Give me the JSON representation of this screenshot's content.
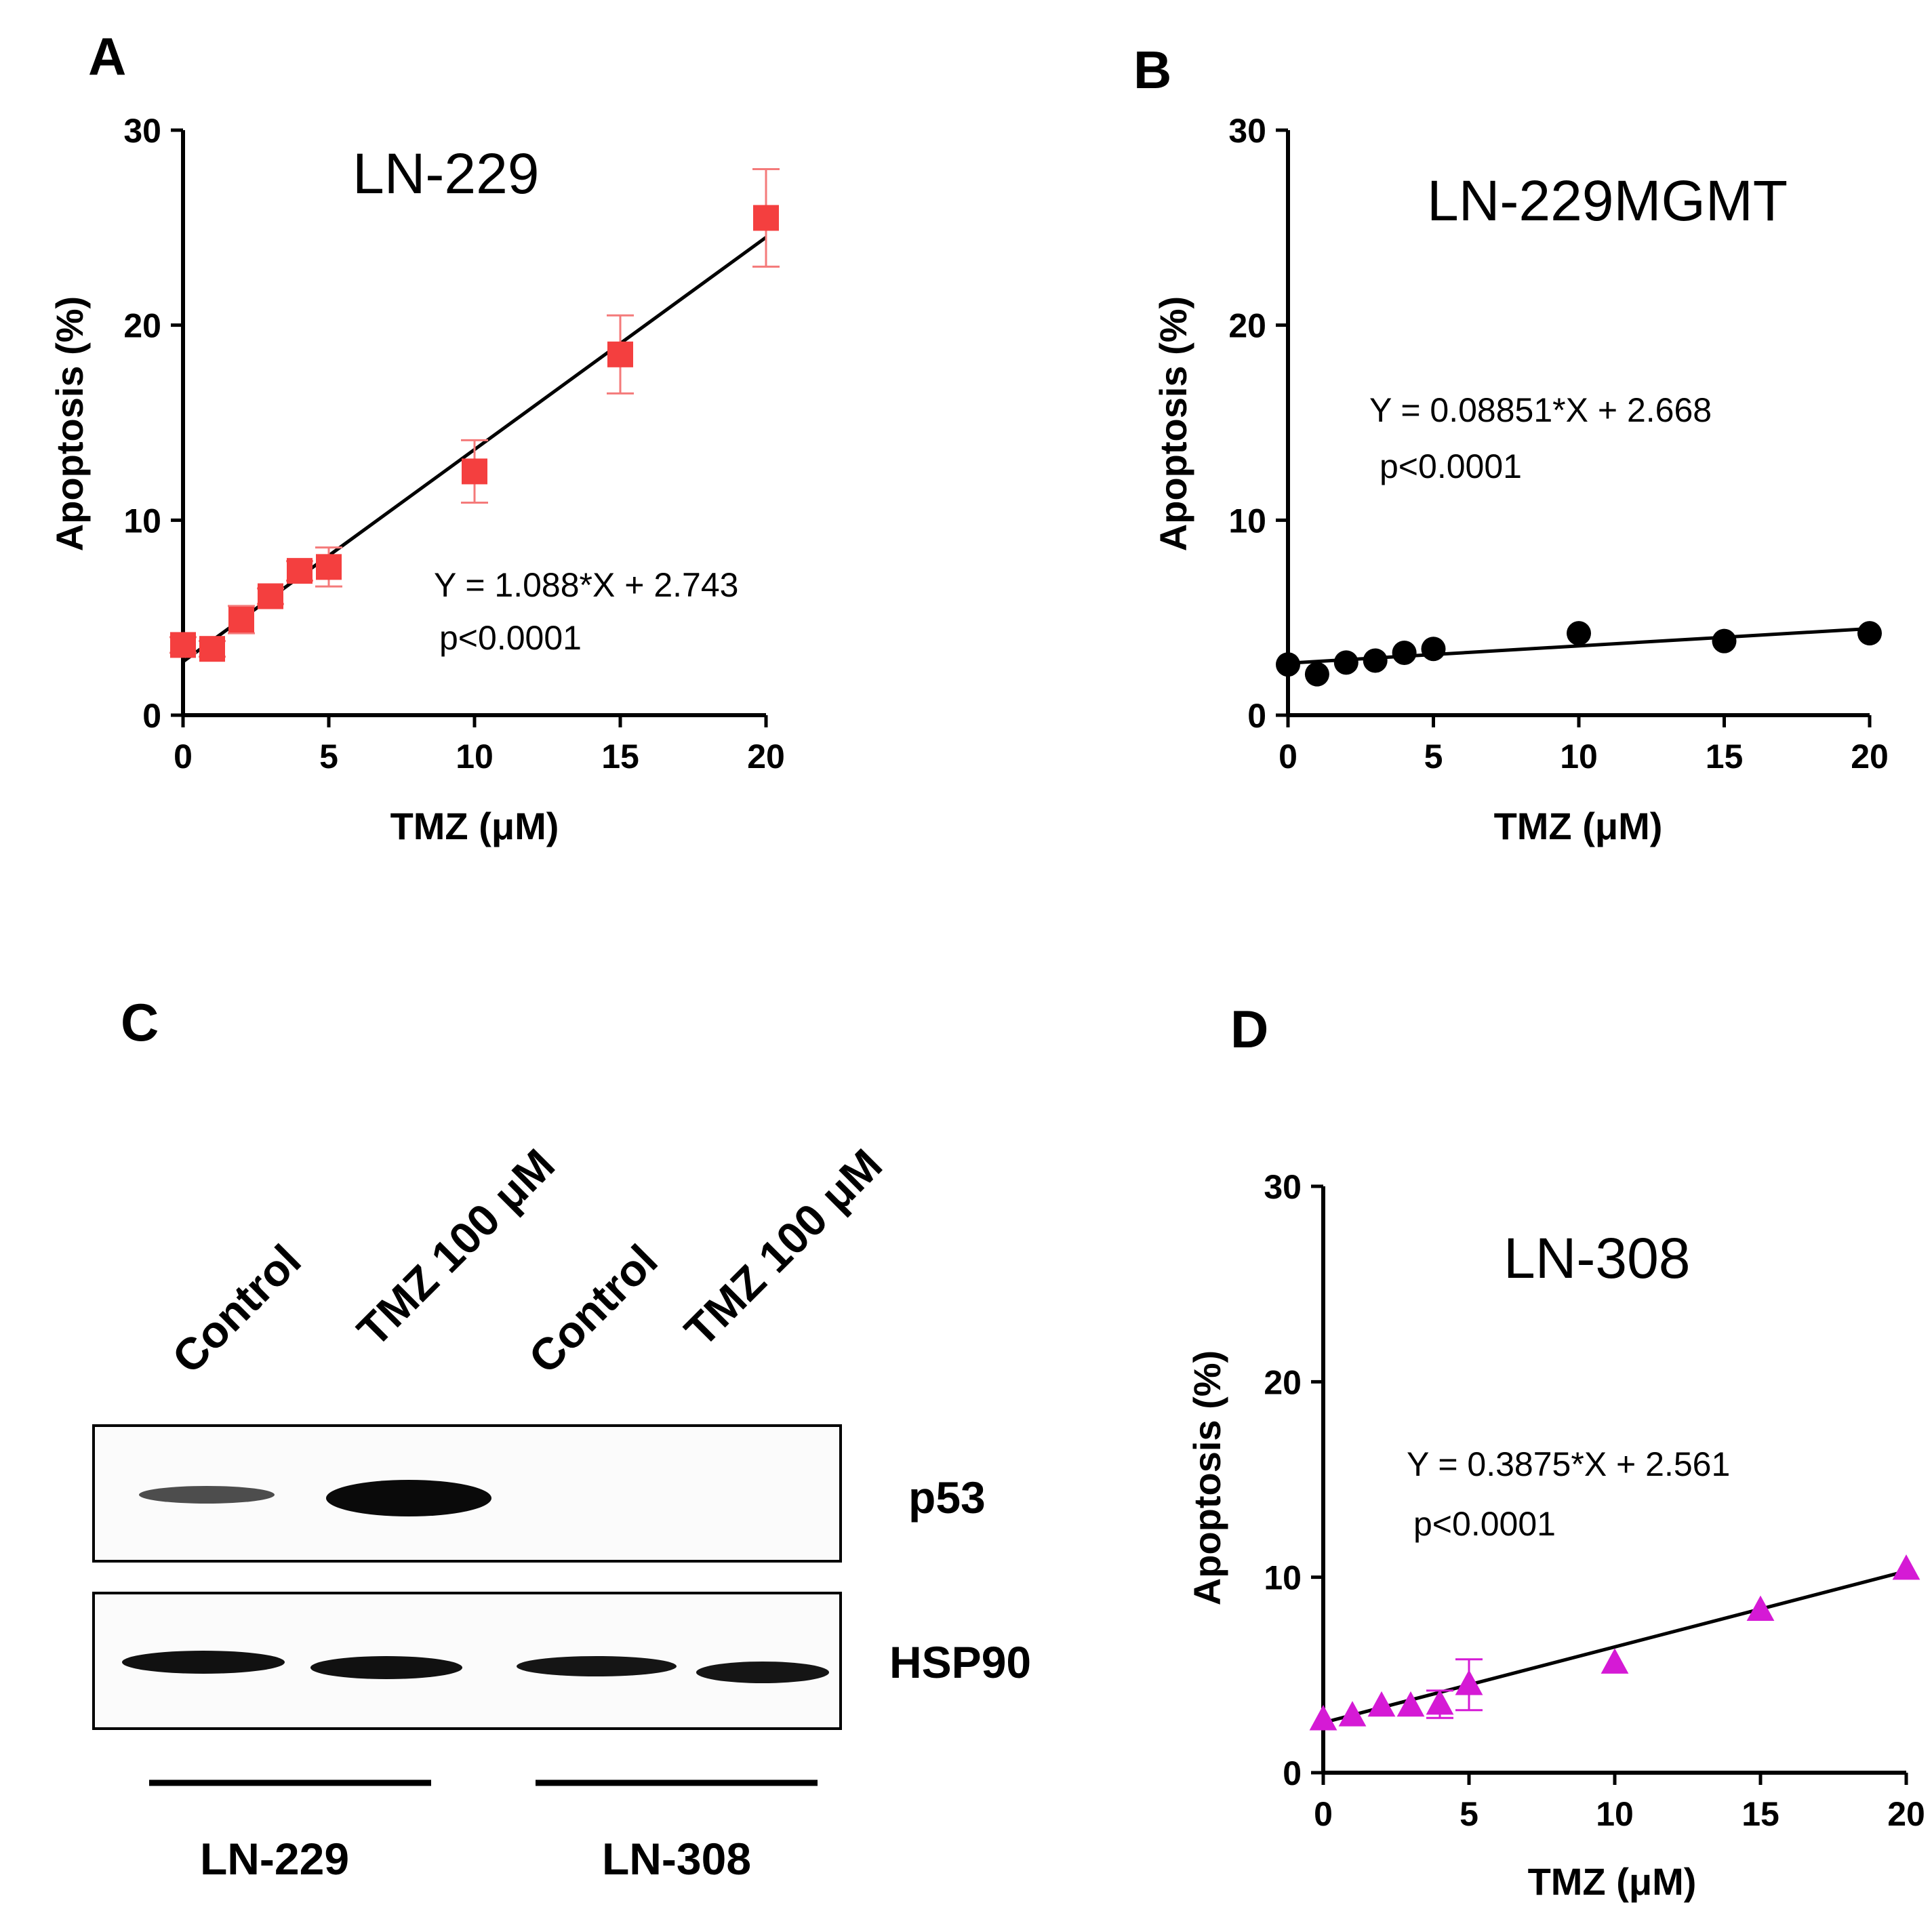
{
  "chart_data": [
    {
      "type": "scatter",
      "panel": "A",
      "title": "LN-229",
      "xlabel": "TMZ (μM)",
      "ylabel": "Apoptosis (%)",
      "xlim": [
        0,
        20
      ],
      "ylim": [
        0,
        30
      ],
      "xticks": [
        0,
        5,
        10,
        15,
        20
      ],
      "yticks": [
        0,
        10,
        20,
        30
      ],
      "marker": "square",
      "color": "#f43f3f",
      "series": [
        {
          "name": "LN-229",
          "x": [
            0,
            1,
            2,
            3,
            4,
            5,
            10,
            15,
            20
          ],
          "y": [
            3.6,
            3.4,
            4.9,
            6.1,
            7.4,
            7.6,
            12.5,
            18.5,
            25.5
          ],
          "error": [
            0.4,
            0.4,
            0.7,
            0.4,
            0.5,
            1.0,
            1.6,
            2.0,
            2.5
          ]
        }
      ],
      "fit": {
        "slope": 1.088,
        "intercept": 2.743
      },
      "equation": "Y = 1.088*X + 2.743",
      "pvalue": "p<0.0001"
    },
    {
      "type": "scatter",
      "panel": "B",
      "title": "LN-229MGMT",
      "xlabel": "TMZ (μM)",
      "ylabel": "Apoptosis (%)",
      "xlim": [
        0,
        20
      ],
      "ylim": [
        0,
        30
      ],
      "xticks": [
        0,
        5,
        10,
        15,
        20
      ],
      "yticks": [
        0,
        10,
        20,
        30
      ],
      "marker": "circle",
      "color": "#000000",
      "series": [
        {
          "name": "LN-229MGMT",
          "x": [
            0,
            1,
            2,
            3,
            4,
            5,
            10,
            15,
            20
          ],
          "y": [
            2.6,
            2.1,
            2.7,
            2.8,
            3.2,
            3.4,
            4.2,
            3.8,
            4.2
          ],
          "error": [
            0,
            0,
            0,
            0,
            0,
            0,
            0,
            0,
            0
          ]
        }
      ],
      "fit": {
        "slope": 0.08851,
        "intercept": 2.668
      },
      "equation": "Y = 0.08851*X + 2.668",
      "pvalue": "p<0.0001"
    },
    {
      "type": "scatter",
      "panel": "D",
      "title": "LN-308",
      "xlabel": "TMZ (μM)",
      "ylabel": "Apoptosis (%)",
      "xlim": [
        0,
        20
      ],
      "ylim": [
        0,
        30
      ],
      "xticks": [
        0,
        5,
        10,
        15,
        20
      ],
      "yticks": [
        0,
        10,
        20,
        30
      ],
      "marker": "triangle",
      "color": "#d51ad5",
      "series": [
        {
          "name": "LN-308",
          "x": [
            0,
            1,
            2,
            3,
            4,
            5,
            10,
            15,
            20
          ],
          "y": [
            2.7,
            2.9,
            3.4,
            3.4,
            3.5,
            4.5,
            5.6,
            8.3,
            10.4
          ],
          "error": [
            0,
            0,
            0,
            0,
            0.7,
            1.3,
            0,
            0,
            0
          ]
        }
      ],
      "fit": {
        "slope": 0.3875,
        "intercept": 2.561
      },
      "equation": "Y = 0.3875*X + 2.561",
      "pvalue": "p<0.0001"
    }
  ],
  "western_blot": {
    "panel": "C",
    "lanes": [
      "Control",
      "TMZ 100 μM",
      "Control",
      "TMZ 100 μM"
    ],
    "proteins": [
      "p53",
      "HSP90"
    ],
    "groups": [
      "LN-229",
      "LN-308"
    ]
  }
}
